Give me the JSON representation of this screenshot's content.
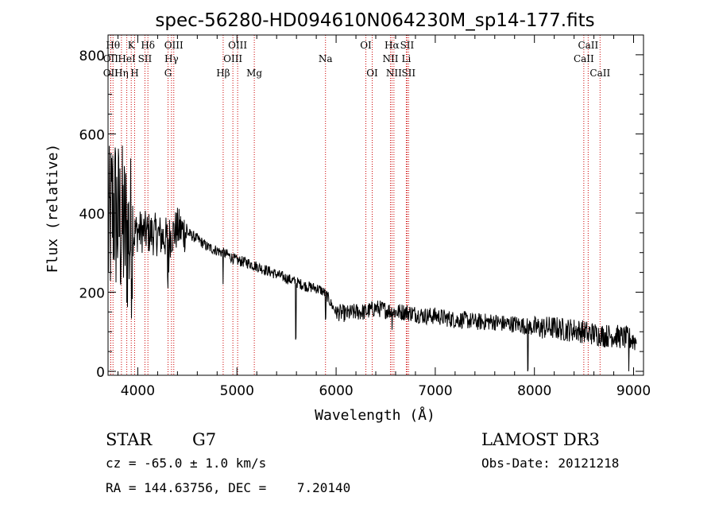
{
  "chart_data": {
    "type": "line",
    "title": "spec-56280-HD094610N064230M_sp14-177.fits",
    "xlabel": "Wavelength (Å)",
    "ylabel": "Flux (relative)",
    "xlim": [
      3700,
      9100
    ],
    "ylim": [
      -10,
      850
    ],
    "xticks": [
      4000,
      5000,
      6000,
      7000,
      8000,
      9000
    ],
    "yticks": [
      0,
      200,
      400,
      600,
      800
    ],
    "xtick_labels": [
      "4000",
      "5000",
      "6000",
      "7000",
      "8000",
      "9000"
    ],
    "ytick_labels": [
      "0",
      "200",
      "400",
      "600",
      "800"
    ],
    "series": [
      {
        "name": "flux",
        "continuum": {
          "x": [
            3700,
            3750,
            3800,
            3850,
            3900,
            3950,
            4000,
            4100,
            4200,
            4300,
            4400,
            4500,
            4600,
            4700,
            4800,
            4900,
            5000,
            5100,
            5200,
            5300,
            5400,
            5500,
            5600,
            5700,
            5800,
            5850,
            5900,
            5950,
            6000,
            6100,
            6200,
            6300,
            6400,
            6500,
            6600,
            6700,
            6800,
            6900,
            7000,
            7100,
            7200,
            7300,
            7400,
            7500,
            7600,
            7700,
            7800,
            7900,
            8000,
            8100,
            8200,
            8300,
            8400,
            8500,
            8600,
            8700,
            8800,
            8900,
            9000,
            9030
          ],
          "y": [
            330,
            420,
            380,
            360,
            340,
            345,
            355,
            350,
            345,
            335,
            360,
            350,
            335,
            315,
            305,
            295,
            280,
            275,
            265,
            255,
            245,
            235,
            225,
            215,
            210,
            205,
            195,
            170,
            150,
            145,
            150,
            150,
            160,
            155,
            150,
            150,
            145,
            140,
            140,
            135,
            130,
            130,
            125,
            125,
            125,
            120,
            120,
            115,
            110,
            110,
            110,
            105,
            105,
            100,
            95,
            90,
            90,
            85,
            80,
            75
          ]
        },
        "features": [
          {
            "x": 4300,
            "y": 240
          },
          {
            "x": 4305,
            "y": 210
          },
          {
            "x": 4310,
            "y": 250
          },
          {
            "x": 4860,
            "y": 220
          },
          {
            "x": 5590,
            "y": 80
          },
          {
            "x": 5594,
            "y": 85
          },
          {
            "x": 5890,
            "y": 130
          },
          {
            "x": 5895,
            "y": 135
          },
          {
            "x": 6563,
            "y": 105
          },
          {
            "x": 7930,
            "y": 0
          },
          {
            "x": 7935,
            "y": 5
          },
          {
            "x": 8542,
            "y": 75
          },
          {
            "x": 8662,
            "y": 70
          },
          {
            "x": 8950,
            "y": 0
          }
        ]
      }
    ],
    "lines": [
      {
        "label": "Hθ",
        "x": 3750,
        "row": 0
      },
      {
        "label": "OII",
        "x": 3727,
        "row": 1
      },
      {
        "label": "OII",
        "x": 3727,
        "row": 2
      },
      {
        "label": "Hη",
        "x": 3835,
        "row": 2
      },
      {
        "label": "HeI",
        "x": 3889,
        "row": 1
      },
      {
        "label": "K",
        "x": 3934,
        "row": 0
      },
      {
        "label": "H",
        "x": 3968,
        "row": 2
      },
      {
        "label": "SII",
        "x": 4072,
        "row": 1
      },
      {
        "label": "Hδ",
        "x": 4102,
        "row": 0
      },
      {
        "label": "OIII",
        "x": 4363,
        "row": 0
      },
      {
        "label": "Hγ",
        "x": 4340,
        "row": 1
      },
      {
        "label": "G",
        "x": 4305,
        "row": 2
      },
      {
        "label": "Hβ",
        "x": 4861,
        "row": 2
      },
      {
        "label": "OIII",
        "x": 5007,
        "row": 0
      },
      {
        "label": "OIII",
        "x": 4959,
        "row": 1
      },
      {
        "label": "Mg",
        "x": 5175,
        "row": 2
      },
      {
        "label": "Na",
        "x": 5893,
        "row": 1
      },
      {
        "label": "OI",
        "x": 6300,
        "row": 0
      },
      {
        "label": "OI",
        "x": 6364,
        "row": 2
      },
      {
        "label": "Hα",
        "x": 6563,
        "row": 0
      },
      {
        "label": "NII",
        "x": 6548,
        "row": 1
      },
      {
        "label": "NII",
        "x": 6583,
        "row": 2
      },
      {
        "label": "SII",
        "x": 6716,
        "row": 0
      },
      {
        "label": "Li",
        "x": 6708,
        "row": 1
      },
      {
        "label": "SII",
        "x": 6731,
        "row": 2
      },
      {
        "label": "CaII",
        "x": 8542,
        "row": 0
      },
      {
        "label": "CaII",
        "x": 8498,
        "row": 1
      },
      {
        "label": "CaII",
        "x": 8662,
        "row": 2
      }
    ],
    "colors": {
      "spectrum": "#000000",
      "lines": "#cc0000",
      "axes": "#000000"
    }
  },
  "info": {
    "object_class": "STAR",
    "subclass": "G7",
    "survey": "LAMOST DR3",
    "redshift": "cz = -65.0 ± 1.0 km/s",
    "obs_date": "Obs-Date: 20121218",
    "coords": "RA = 144.63756, DEC =    7.20140"
  }
}
